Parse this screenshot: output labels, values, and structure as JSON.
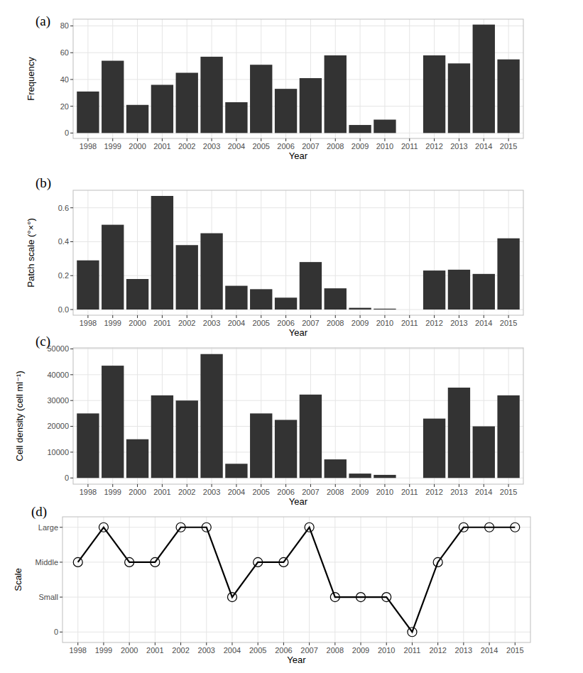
{
  "chart_data": [
    {
      "type": "bar",
      "annotation": "(a)",
      "x_label": "Year",
      "y_label": "Frequency",
      "categories": [
        "1998",
        "1999",
        "2000",
        "2001",
        "2002",
        "2003",
        "2004",
        "2005",
        "2006",
        "2007",
        "2008",
        "2009",
        "2010",
        "2011",
        "2012",
        "2013",
        "2014",
        "2015"
      ],
      "values": [
        31,
        54,
        21,
        36,
        45,
        57,
        23,
        51,
        33,
        41,
        58,
        6,
        10,
        0,
        58,
        52,
        81,
        55
      ],
      "color": "#333333",
      "ylim": [
        -4.05,
        85.05
      ],
      "yticks": [
        0,
        20,
        40,
        60,
        80
      ],
      "grid": true
    },
    {
      "type": "bar",
      "annotation": "(b)",
      "x_label": "Year",
      "y_label": "Patch scale (°×°)",
      "categories": [
        "1998",
        "1999",
        "2000",
        "2001",
        "2002",
        "2003",
        "2004",
        "2005",
        "2006",
        "2007",
        "2008",
        "2009",
        "2010",
        "2011",
        "2012",
        "2013",
        "2014",
        "2015"
      ],
      "values": [
        0.29,
        0.5,
        0.18,
        0.67,
        0.38,
        0.45,
        0.14,
        0.12,
        0.07,
        0.28,
        0.125,
        0.01,
        0.005,
        0,
        0.23,
        0.235,
        0.21,
        0.42
      ],
      "color": "#333333",
      "ylim": [
        -0.0335,
        0.7035
      ],
      "yticks": [
        {
          "value": 0,
          "label": "0.0"
        },
        0.2,
        0.4,
        0.6
      ],
      "grid": true
    },
    {
      "type": "bar",
      "annotation": "(c)",
      "x_label": "Year",
      "y_label": "Cell density (cell ml⁻¹)",
      "categories": [
        "1998",
        "1999",
        "2000",
        "2001",
        "2002",
        "2003",
        "2004",
        "2005",
        "2006",
        "2007",
        "2008",
        "2009",
        "2010",
        "2011",
        "2012",
        "2013",
        "2014",
        "2015"
      ],
      "values": [
        25000,
        43500,
        15000,
        32000,
        30000,
        48000,
        5500,
        25000,
        22500,
        32300,
        7200,
        1700,
        1200,
        0,
        23000,
        35000,
        20000,
        32000
      ],
      "color": "#333333",
      "ylim": [
        -2400,
        50400
      ],
      "yticks": [
        0,
        10000,
        20000,
        30000,
        40000,
        50000
      ],
      "grid": true
    },
    {
      "type": "line",
      "annotation": "(d)",
      "x_label": "Year",
      "y_label": "Scale",
      "categories": [
        "1998",
        "1999",
        "2000",
        "2001",
        "2002",
        "2003",
        "2004",
        "2005",
        "2006",
        "2007",
        "2008",
        "2009",
        "2010",
        "2011",
        "2012",
        "2013",
        "2014",
        "2015"
      ],
      "values": [
        2,
        3,
        2,
        2,
        3,
        3,
        1,
        2,
        2,
        3,
        1,
        1,
        1,
        0,
        2,
        3,
        3,
        3
      ],
      "color": "#000000",
      "marker": "circle",
      "ylim": [
        -0.3,
        3.3
      ],
      "yticks": [
        0,
        {
          "value": 1,
          "label": "Small"
        },
        {
          "value": 2,
          "label": "Middle"
        },
        {
          "value": 3,
          "label": "Large"
        }
      ],
      "grid": true
    }
  ]
}
